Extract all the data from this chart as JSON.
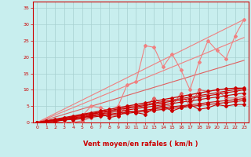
{
  "title": "",
  "xlabel": "Vent moyen/en rafales ( km/h )",
  "ylabel": "",
  "xlim": [
    -0.5,
    23.5
  ],
  "ylim": [
    0,
    37
  ],
  "yticks": [
    0,
    5,
    10,
    15,
    20,
    25,
    30,
    35
  ],
  "xticks": [
    0,
    1,
    2,
    3,
    4,
    5,
    6,
    7,
    8,
    9,
    10,
    11,
    12,
    13,
    14,
    15,
    16,
    17,
    18,
    19,
    20,
    21,
    22,
    23
  ],
  "bg_color": "#c8eeee",
  "grid_color": "#a8d0d0",
  "series": [
    {
      "x": [
        0,
        23
      ],
      "y": [
        0,
        31.5
      ],
      "color": "#f08080",
      "linewidth": 0.8,
      "marker": null,
      "markersize": 0,
      "linestyle": "-"
    },
    {
      "x": [
        0,
        23
      ],
      "y": [
        0,
        26.0
      ],
      "color": "#f08080",
      "linewidth": 0.8,
      "marker": null,
      "markersize": 0,
      "linestyle": "-"
    },
    {
      "x": [
        0,
        23
      ],
      "y": [
        0,
        19.0
      ],
      "color": "#e06060",
      "linewidth": 0.8,
      "marker": null,
      "markersize": 0,
      "linestyle": "-"
    },
    {
      "x": [
        0,
        1,
        2,
        3,
        4,
        5,
        6,
        7,
        8,
        9,
        10,
        11,
        12,
        13,
        14,
        15,
        16,
        17,
        18,
        19,
        20,
        21,
        22,
        23
      ],
      "y": [
        0,
        0.5,
        0.5,
        1.5,
        1.5,
        2.0,
        5.0,
        4.5,
        3.5,
        5.0,
        11.5,
        12.5,
        23.5,
        23.0,
        17.0,
        21.0,
        16.0,
        10.0,
        18.5,
        25.0,
        22.0,
        19.5,
        26.5,
        31.5
      ],
      "color": "#f08080",
      "linewidth": 0.8,
      "marker": "D",
      "markersize": 2.0,
      "linestyle": "-"
    },
    {
      "x": [
        0,
        1,
        2,
        3,
        4,
        5,
        6,
        7,
        8,
        9,
        10,
        11,
        12,
        13,
        14,
        15,
        16,
        17,
        18,
        19,
        20,
        21,
        22,
        23
      ],
      "y": [
        0,
        0,
        0,
        0,
        0,
        0.5,
        1.5,
        3.5,
        2.5,
        2.0,
        5.0,
        5.0,
        4.5,
        7.5,
        5.5,
        5.0,
        9.0,
        5.0,
        10.0,
        9.5,
        10.0,
        7.5,
        7.5,
        8.0
      ],
      "color": "#e06060",
      "linewidth": 0.8,
      "marker": "D",
      "markersize": 2.0,
      "linestyle": "-"
    },
    {
      "x": [
        0,
        23
      ],
      "y": [
        0,
        10.5
      ],
      "color": "#cc0000",
      "linewidth": 0.8,
      "marker": null,
      "markersize": 0,
      "linestyle": "-"
    },
    {
      "x": [
        0,
        1,
        2,
        3,
        4,
        5,
        6,
        7,
        8,
        9,
        10,
        11,
        12,
        13,
        14,
        15,
        16,
        17,
        18,
        19,
        20,
        21,
        22,
        23
      ],
      "y": [
        0,
        0.5,
        1.0,
        1.5,
        2.0,
        2.5,
        3.0,
        3.5,
        4.0,
        4.5,
        5.0,
        5.5,
        6.0,
        6.5,
        7.0,
        7.5,
        8.0,
        8.5,
        9.0,
        9.5,
        10.0,
        10.3,
        10.5,
        10.5
      ],
      "color": "#cc0000",
      "linewidth": 0.9,
      "marker": "D",
      "markersize": 2.0,
      "linestyle": "-"
    },
    {
      "x": [
        0,
        1,
        2,
        3,
        4,
        5,
        6,
        7,
        8,
        9,
        10,
        11,
        12,
        13,
        14,
        15,
        16,
        17,
        18,
        19,
        20,
        21,
        22,
        23
      ],
      "y": [
        0,
        0.4,
        0.8,
        1.3,
        1.7,
        2.1,
        2.6,
        3.0,
        3.4,
        3.9,
        4.3,
        4.7,
        5.2,
        5.6,
        6.0,
        6.5,
        6.9,
        7.3,
        7.8,
        8.2,
        8.6,
        9.1,
        9.5,
        10.0
      ],
      "color": "#cc0000",
      "linewidth": 0.8,
      "marker": "D",
      "markersize": 2.0,
      "linestyle": "-"
    },
    {
      "x": [
        0,
        1,
        2,
        3,
        4,
        5,
        6,
        7,
        8,
        9,
        10,
        11,
        12,
        13,
        14,
        15,
        16,
        17,
        18,
        19,
        20,
        21,
        22,
        23
      ],
      "y": [
        0,
        0.3,
        0.6,
        1.1,
        1.4,
        1.8,
        2.2,
        2.6,
        3.0,
        3.4,
        3.8,
        4.2,
        4.6,
        5.0,
        5.4,
        5.8,
        6.2,
        6.6,
        7.0,
        7.4,
        7.8,
        8.2,
        8.6,
        9.0
      ],
      "color": "#cc0000",
      "linewidth": 0.8,
      "marker": "D",
      "markersize": 2.0,
      "linestyle": "-"
    },
    {
      "x": [
        0,
        1,
        2,
        3,
        4,
        5,
        6,
        7,
        8,
        9,
        10,
        11,
        12,
        13,
        14,
        15,
        16,
        17,
        18,
        19,
        20,
        21,
        22,
        23
      ],
      "y": [
        0,
        0.3,
        0.6,
        0.9,
        1.2,
        1.6,
        1.9,
        2.2,
        2.5,
        2.9,
        3.2,
        3.5,
        3.8,
        4.1,
        4.5,
        4.8,
        5.1,
        5.4,
        5.7,
        6.1,
        6.4,
        6.7,
        7.0,
        7.3
      ],
      "color": "#cc0000",
      "linewidth": 0.8,
      "marker": "D",
      "markersize": 2.0,
      "linestyle": "-"
    },
    {
      "x": [
        0,
        1,
        2,
        3,
        4,
        5,
        6,
        7,
        8,
        9,
        10,
        11,
        12,
        13,
        14,
        15,
        16,
        17,
        18,
        19,
        20,
        21,
        22,
        23
      ],
      "y": [
        0,
        0.2,
        0.4,
        0.7,
        1.0,
        1.3,
        1.6,
        1.9,
        2.2,
        2.5,
        2.8,
        3.1,
        3.4,
        3.7,
        4.0,
        4.3,
        4.6,
        4.9,
        5.2,
        5.5,
        5.8,
        6.1,
        6.4,
        6.7
      ],
      "color": "#cc0000",
      "linewidth": 0.8,
      "marker": "D",
      "markersize": 2.0,
      "linestyle": "-"
    },
    {
      "x": [
        0,
        1,
        2,
        3,
        4,
        5,
        6,
        7,
        8,
        9,
        10,
        11,
        12,
        13,
        14,
        15,
        16,
        17,
        18,
        19,
        20,
        21,
        22,
        23
      ],
      "y": [
        0,
        0.0,
        0.0,
        1.3,
        0.8,
        1.2,
        2.5,
        3.0,
        1.5,
        2.0,
        3.5,
        3.0,
        2.5,
        4.5,
        5.0,
        3.5,
        4.5,
        5.5,
        4.0,
        4.5,
        5.5,
        5.0,
        5.5,
        5.5
      ],
      "color": "#cc0000",
      "linewidth": 0.8,
      "marker": "D",
      "markersize": 2.0,
      "linestyle": "-"
    }
  ]
}
